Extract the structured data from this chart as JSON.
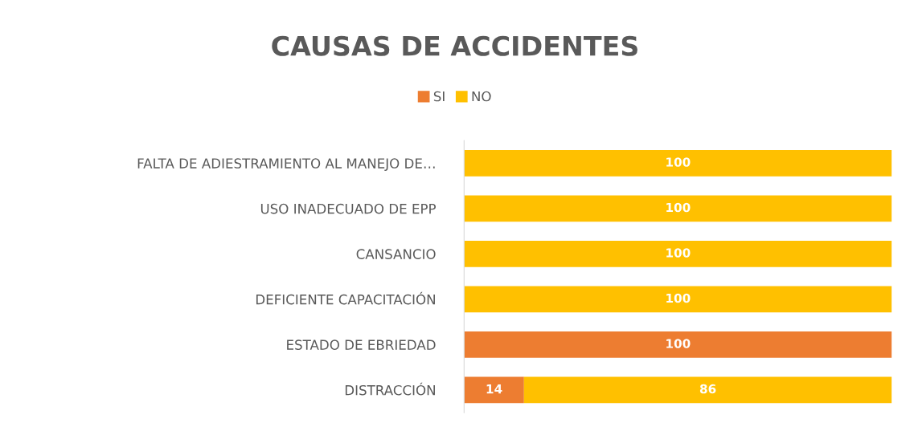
{
  "chart_data": {
    "type": "bar",
    "orientation": "horizontal",
    "stacked": true,
    "title": "CAUSAS DE ACCIDENTES",
    "categories": [
      "FALTA DE ADIESTRAMIENTO AL MANEJO DE…",
      "USO INADECUADO DE EPP",
      "CANSANCIO",
      "DEFICIENTE CAPACITACIÓN",
      "ESTADO DE EBRIEDAD",
      "DISTRACCIÓN"
    ],
    "series": [
      {
        "name": "SI",
        "color": "#ed7d31",
        "values": [
          0,
          0,
          0,
          0,
          100,
          14
        ],
        "value_labels": [
          null,
          null,
          null,
          null,
          "100",
          "14"
        ]
      },
      {
        "name": "NO",
        "color": "#ffc000",
        "values": [
          100,
          100,
          100,
          100,
          0,
          86
        ],
        "value_labels": [
          "100",
          "100",
          "100",
          "100",
          null,
          "86"
        ]
      }
    ],
    "xlim": [
      0,
      100
    ],
    "tick_labels": "y",
    "grid": false,
    "legend": "top"
  }
}
